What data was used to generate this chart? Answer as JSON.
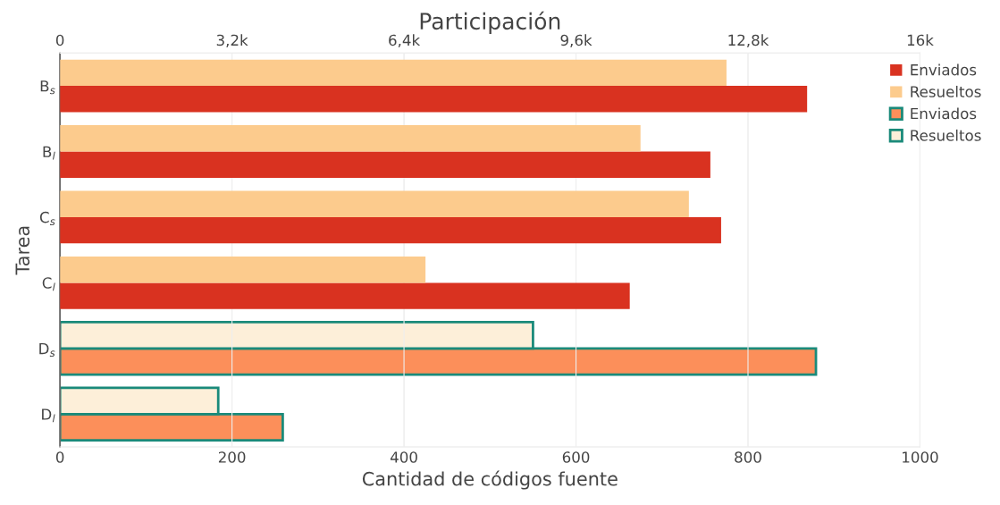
{
  "chart_data": {
    "type": "bar",
    "orientation": "horizontal",
    "x2label": "Participación",
    "xlabel": "Cantidad de códigos fuente",
    "ylabel": "Tarea",
    "categories": [
      "B$_{s}$",
      "B$_{l}$",
      "C$_{s}$",
      "C$_{l}$",
      "D$_{s}$",
      "D$_{l}$"
    ],
    "series": [
      {
        "name": "Enviados",
        "color": "#d93220",
        "axis": "x2",
        "values": [
          13900,
          12100,
          12300,
          10600,
          null,
          null
        ]
      },
      {
        "name": "Resueltos",
        "color": "#fccb8d",
        "axis": "x2",
        "values": [
          12400,
          10800,
          11700,
          6800,
          null,
          null
        ]
      },
      {
        "name": "Enviados",
        "color": "#fc8f5a",
        "values": [
          null,
          null,
          null,
          null,
          879,
          259
        ]
      },
      {
        "name": "Resueltos",
        "color": "#fdefd9",
        "values": [
          null,
          null,
          null,
          null,
          550,
          184
        ]
      }
    ],
    "xlim": [
      0,
      1000
    ],
    "xticks": [
      0,
      200,
      400,
      600,
      800,
      1000
    ],
    "x2lim": [
      0,
      16000
    ],
    "x2ticks": [
      0,
      {
        "value": 3200,
        "label": "3,2k"
      },
      {
        "value": 6400,
        "label": "6,4k"
      },
      {
        "value": 9600,
        "label": "9,6k"
      },
      {
        "value": 12800,
        "label": "12,8k"
      },
      {
        "value": 16000,
        "label": "16k"
      }
    ],
    "grid": "x",
    "legend": "top right"
  }
}
